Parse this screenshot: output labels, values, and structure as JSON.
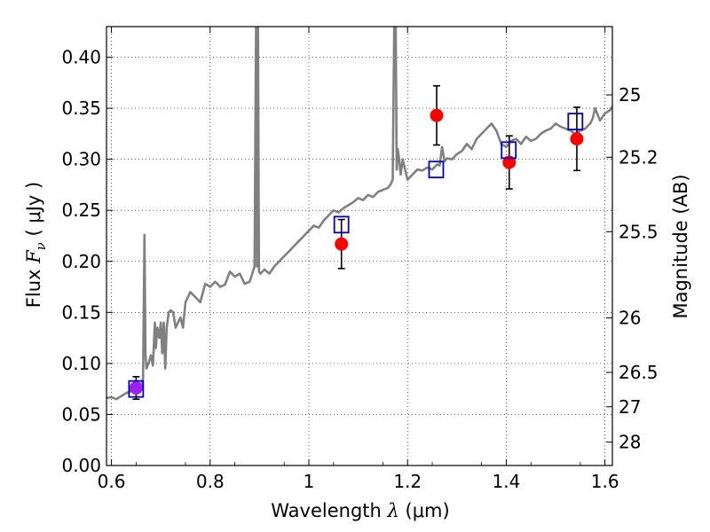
{
  "chart_data": {
    "type": "scatter",
    "xlabel": {
      "prefix": "Wavelength  ",
      "symbol": "λ",
      "unit": " (μm)"
    },
    "ylabel": {
      "prefix": "Flux  ",
      "symbol": "F",
      "subscript": "ν",
      "unit": "  ( μJy )"
    },
    "y2label": "Magnitude (AB)",
    "xlim": [
      0.59,
      1.615
    ],
    "ylim": [
      0.0,
      0.43
    ],
    "grid": true,
    "x_ticks": [
      0.6,
      0.8,
      1.0,
      1.2,
      1.4,
      1.6
    ],
    "x_tick_labels": [
      "0.6",
      "0.8",
      "1",
      "1.2",
      "1.4",
      "1.6"
    ],
    "y_ticks": [
      0.0,
      0.05,
      0.1,
      0.15,
      0.2,
      0.25,
      0.3,
      0.35,
      0.4
    ],
    "y_tick_labels": [
      "0.00",
      "0.05",
      "0.10",
      "0.15",
      "0.20",
      "0.25",
      "0.30",
      "0.35",
      "0.40"
    ],
    "y2_ticks": [
      25,
      25.2,
      25.5,
      26,
      26.5,
      27,
      28
    ],
    "y2_tick_labels": [
      "25",
      "25.2",
      "25.5",
      "26",
      "26.5",
      "27",
      "28"
    ],
    "series": [
      {
        "kind": "line",
        "color": "#808080",
        "x": [
          0.59,
          0.6,
          0.61,
          0.62,
          0.63,
          0.64,
          0.65,
          0.655,
          0.66,
          0.664,
          0.667,
          0.669,
          0.671,
          0.675,
          0.68,
          0.684,
          0.688,
          0.69,
          0.693,
          0.697,
          0.7,
          0.703,
          0.706,
          0.709,
          0.712,
          0.716,
          0.72,
          0.725,
          0.73,
          0.735,
          0.74,
          0.745,
          0.75,
          0.76,
          0.77,
          0.78,
          0.79,
          0.8,
          0.81,
          0.815,
          0.82,
          0.83,
          0.84,
          0.85,
          0.86,
          0.87,
          0.88,
          0.89,
          0.893,
          0.895,
          0.897,
          0.899,
          0.902,
          0.91,
          0.92,
          0.93,
          0.94,
          0.95,
          0.96,
          0.97,
          0.98,
          0.99,
          1.0,
          1.01,
          1.02,
          1.03,
          1.04,
          1.05,
          1.06,
          1.07,
          1.08,
          1.09,
          1.1,
          1.11,
          1.12,
          1.13,
          1.14,
          1.15,
          1.16,
          1.165,
          1.17,
          1.173,
          1.176,
          1.178,
          1.18,
          1.183,
          1.186,
          1.19,
          1.2,
          1.21,
          1.22,
          1.23,
          1.24,
          1.25,
          1.26,
          1.265,
          1.27,
          1.275,
          1.28,
          1.29,
          1.3,
          1.31,
          1.32,
          1.33,
          1.34,
          1.35,
          1.36,
          1.37,
          1.38,
          1.39,
          1.4,
          1.41,
          1.42,
          1.43,
          1.44,
          1.45,
          1.46,
          1.47,
          1.48,
          1.49,
          1.5,
          1.51,
          1.52,
          1.53,
          1.54,
          1.55,
          1.56,
          1.57,
          1.575,
          1.58,
          1.59,
          1.6,
          1.61,
          1.615
        ],
        "y": [
          0.066,
          0.067,
          0.065,
          0.068,
          0.071,
          0.073,
          0.076,
          0.074,
          0.078,
          0.085,
          0.226,
          0.11,
          0.095,
          0.1,
          0.108,
          0.098,
          0.14,
          0.115,
          0.135,
          0.125,
          0.14,
          0.11,
          0.14,
          0.095,
          0.135,
          0.15,
          0.152,
          0.15,
          0.135,
          0.14,
          0.145,
          0.135,
          0.16,
          0.17,
          0.165,
          0.16,
          0.178,
          0.175,
          0.18,
          0.178,
          0.175,
          0.177,
          0.19,
          0.185,
          0.188,
          0.178,
          0.18,
          0.195,
          0.43,
          0.195,
          0.43,
          0.19,
          0.188,
          0.192,
          0.188,
          0.195,
          0.2,
          0.205,
          0.21,
          0.215,
          0.22,
          0.225,
          0.23,
          0.235,
          0.233,
          0.24,
          0.245,
          0.25,
          0.248,
          0.252,
          0.255,
          0.258,
          0.262,
          0.26,
          0.265,
          0.263,
          0.268,
          0.27,
          0.272,
          0.275,
          0.28,
          0.43,
          0.43,
          0.29,
          0.31,
          0.3,
          0.285,
          0.3,
          0.28,
          0.285,
          0.29,
          0.289,
          0.292,
          0.29,
          0.295,
          0.294,
          0.312,
          0.298,
          0.301,
          0.3,
          0.305,
          0.308,
          0.315,
          0.31,
          0.32,
          0.325,
          0.33,
          0.335,
          0.328,
          0.315,
          0.312,
          0.318,
          0.32,
          0.315,
          0.322,
          0.318,
          0.32,
          0.325,
          0.328,
          0.33,
          0.335,
          0.332,
          0.33,
          0.328,
          0.325,
          0.328,
          0.33,
          0.335,
          0.34,
          0.35,
          0.338,
          0.345,
          0.348,
          0.352
        ]
      },
      {
        "kind": "scatter",
        "marker": "circle",
        "color": "#ff0000",
        "x": [
          1.066,
          1.259,
          1.406,
          1.543
        ],
        "y": [
          0.217,
          0.343,
          0.297,
          0.32
        ],
        "yerr": [
          0.024,
          0.029,
          0.026,
          0.031
        ]
      },
      {
        "kind": "scatter",
        "marker": "circle",
        "color": "#a020f0",
        "x": [
          0.65
        ],
        "y": [
          0.076
        ],
        "yerr": [
          0.011
        ]
      },
      {
        "kind": "scatter",
        "marker": "square-open",
        "color": "#0000cc",
        "x": [
          0.65,
          1.066,
          1.258,
          1.405,
          1.54
        ],
        "y": [
          0.075,
          0.236,
          0.29,
          0.309,
          0.337
        ]
      }
    ]
  }
}
